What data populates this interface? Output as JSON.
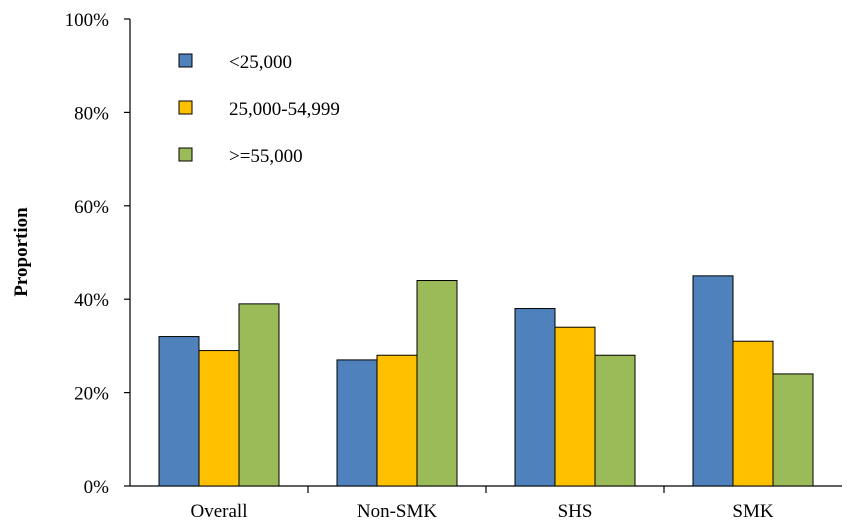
{
  "chart_data": {
    "type": "bar",
    "title": "",
    "xlabel": "",
    "ylabel": "Proportion",
    "ylim": [
      0,
      100
    ],
    "yticks": [
      "0%",
      "20%",
      "40%",
      "60%",
      "80%",
      "100%"
    ],
    "y_unit": "%",
    "grid": false,
    "legend_position": "top-left",
    "categories": [
      "Overall",
      "Non-SMK",
      "SHS",
      "SMK"
    ],
    "series": [
      {
        "name": "<25,000",
        "color": "#4F81BD",
        "values": [
          32,
          27,
          38,
          45
        ]
      },
      {
        "name": "25,000-54,999",
        "color": "#FFC000",
        "values": [
          29,
          28,
          34,
          31
        ]
      },
      {
        "name": ">=55,000",
        "color": "#9BBB59",
        "values": [
          39,
          44,
          28,
          24
        ]
      }
    ]
  }
}
